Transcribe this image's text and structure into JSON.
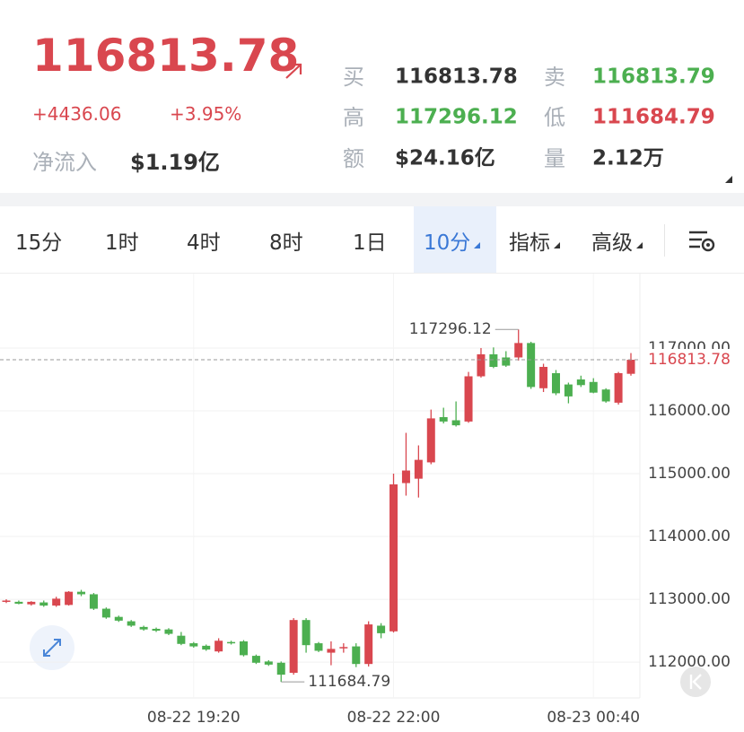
{
  "header": {
    "price": "116813.78",
    "change": "+4436.06",
    "change_pct": "+3.95%",
    "netflow_label": "净流入",
    "netflow": "$1.19亿",
    "quotes": [
      {
        "label": "买",
        "value": "116813.78"
      },
      {
        "label": "卖",
        "value": "116813.79"
      },
      {
        "label": "高",
        "value": "117296.12"
      },
      {
        "label": "低",
        "value": "111684.79"
      },
      {
        "label": "额",
        "value": "$24.16亿"
      },
      {
        "label": "量",
        "value": "2.12万"
      }
    ]
  },
  "tabs": [
    "15分",
    "1时",
    "4时",
    "8时",
    "1日",
    "10分",
    "指标",
    "高级"
  ],
  "chart_data": {
    "type": "candlestick",
    "up_color": "#d9474f",
    "down_color": "#4caf50",
    "grid": true,
    "categories": [
      null,
      null,
      null,
      null,
      null,
      null,
      null,
      null,
      null,
      null,
      null,
      null,
      null,
      null,
      null,
      "08-22 19:20",
      null,
      null,
      null,
      null,
      null,
      null,
      null,
      null,
      null,
      null,
      null,
      null,
      null,
      null,
      null,
      "08-22 22:00",
      null,
      null,
      null,
      null,
      null,
      null,
      null,
      null,
      null,
      null,
      null,
      null,
      null,
      null,
      null,
      "08-23 00:40",
      null,
      null,
      null
    ],
    "open": [
      112960,
      112960,
      112920,
      112950,
      112900,
      112910,
      113120,
      113080,
      112850,
      112720,
      112650,
      112560,
      112530,
      112520,
      112420,
      112300,
      112260,
      112170,
      112320,
      112330,
      112100,
      112010,
      111990,
      111830,
      112670,
      112300,
      112150,
      112220,
      112250,
      111970,
      112580,
      112490,
      114850,
      114920,
      115180,
      115900,
      115850,
      115830,
      116550,
      116900,
      116850,
      116850,
      117080,
      116360,
      116600,
      116420,
      116500,
      116460,
      116340,
      116130,
      116590
    ],
    "high": [
      113000,
      112980,
      112970,
      112980,
      113040,
      113130,
      113150,
      113100,
      112870,
      112740,
      112670,
      112580,
      112550,
      112540,
      112480,
      112320,
      112280,
      112380,
      112340,
      112350,
      112120,
      112030,
      112010,
      112700,
      112700,
      112320,
      112330,
      112300,
      112300,
      112650,
      112620,
      115000,
      115650,
      115450,
      116020,
      116050,
      116150,
      116620,
      117000,
      117010,
      116950,
      117296.12,
      117100,
      116750,
      116650,
      116450,
      116560,
      116520,
      116360,
      116620,
      116920
    ],
    "low": [
      112940,
      112920,
      112900,
      112880,
      112880,
      112900,
      113050,
      112830,
      112690,
      112640,
      112560,
      112500,
      112480,
      112430,
      112270,
      112230,
      112180,
      112150,
      112280,
      112090,
      111970,
      111940,
      111684.79,
      111800,
      112150,
      112160,
      111950,
      112150,
      111920,
      111930,
      112380,
      112470,
      114650,
      114620,
      115150,
      115800,
      115750,
      115810,
      116530,
      116680,
      116700,
      116800,
      116350,
      116300,
      116250,
      116120,
      116380,
      116280,
      116130,
      116100,
      116560
    ],
    "close": [
      112980,
      112930,
      112960,
      112900,
      113010,
      113120,
      113080,
      112850,
      112710,
      112660,
      112580,
      112520,
      112500,
      112450,
      112290,
      112250,
      112200,
      112340,
      112300,
      112110,
      111990,
      111960,
      111800,
      112670,
      112270,
      112180,
      112210,
      112240,
      111970,
      112600,
      112460,
      114830,
      115050,
      115220,
      115880,
      115830,
      115770,
      116550,
      116900,
      116700,
      116720,
      117080,
      116380,
      116700,
      116280,
      116230,
      116410,
      116290,
      116150,
      116600,
      116813.78
    ],
    "ylim": [
      111430,
      118185
    ],
    "yticks": [
      {
        "value": 112000,
        "label": "112000.00"
      },
      {
        "value": 113000,
        "label": "113000.00"
      },
      {
        "value": 114000,
        "label": "114000.00"
      },
      {
        "value": 115000,
        "label": "115000.00"
      },
      {
        "value": 116000,
        "label": "116000.00"
      },
      {
        "value": 117000,
        "label": "117000.00"
      }
    ]
  }
}
